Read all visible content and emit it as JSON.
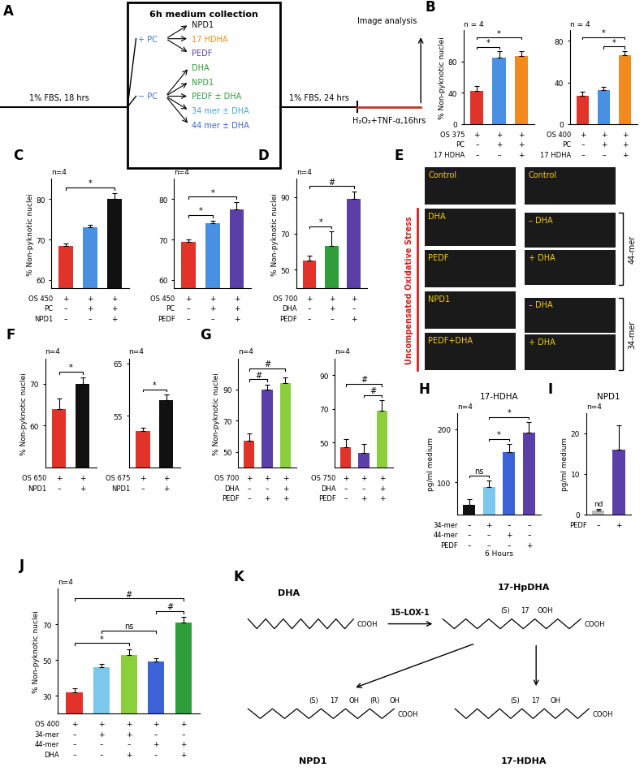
{
  "diagram_A": {
    "panel": "A",
    "title": "6h medium collection",
    "start": "1% FBS, 18 hrs",
    "groups": [
      {
        "label": "+ PC",
        "items": [
          {
            "text": "NPD1",
            "color": "#111111"
          },
          {
            "text": "17 HDHA",
            "color": "#f28a1e"
          },
          {
            "text": "PEDF",
            "color": "#5b3fa8"
          }
        ]
      },
      {
        "label": "− PC",
        "items": [
          {
            "text": "DHA",
            "color": "#2e9e3a"
          },
          {
            "text": "NPD1",
            "color": "#2e9e3a"
          },
          {
            "text": "PEDF ± DHA",
            "color": "#2e9e3a"
          },
          {
            "text": "34 mer ± DHA",
            "color": "#3aa6e0"
          },
          {
            "text": "44 mer ± DHA",
            "color": "#3b63d6"
          }
        ]
      }
    ],
    "after": "1% FBS, 24 hrs",
    "stress": "H₂O₂+TNF-α,16hrs",
    "end": "Image analysis"
  },
  "chart_data": [
    {
      "type": "bar",
      "panel": "B",
      "n": "n = 4",
      "ylabel": "% Non-pyknotic nuclei",
      "x_table": [
        {
          "label": "OS 375",
          "marks": [
            "+",
            "+",
            "+"
          ]
        },
        {
          "label": "PC",
          "marks": [
            "–",
            "+",
            "+"
          ]
        },
        {
          "label": "17 HDHA",
          "marks": [
            "–",
            "–",
            "+"
          ]
        }
      ],
      "values": [
        43,
        85,
        87
      ],
      "errors": [
        6,
        8,
        6
      ],
      "colors": [
        "#e2332b",
        "#4a90e2",
        "#f28a1e"
      ],
      "ylim": [
        0,
        120
      ],
      "yticks": [
        0,
        40,
        80
      ],
      "comparisons": [
        {
          "pair": [
            0,
            1
          ],
          "label": "*"
        },
        {
          "pair": [
            0,
            2
          ],
          "label": "*"
        }
      ]
    },
    {
      "type": "bar",
      "n": "n = 4",
      "x_table": [
        {
          "label": "OS 400",
          "marks": [
            "+",
            "+",
            "+"
          ]
        },
        {
          "label": "PC",
          "marks": [
            "–",
            "+",
            "+"
          ]
        },
        {
          "label": "17 HDHA",
          "marks": [
            "–",
            "–",
            "+"
          ]
        }
      ],
      "values": [
        27,
        33,
        66
      ],
      "errors": [
        4,
        3,
        4
      ],
      "colors": [
        "#e2332b",
        "#4a90e2",
        "#f28a1e"
      ],
      "ylim": [
        0,
        90
      ],
      "yticks": [
        0,
        40,
        80
      ],
      "comparisons": [
        {
          "pair": [
            1,
            2
          ],
          "label": "*"
        },
        {
          "pair": [
            0,
            2
          ],
          "label": "*"
        }
      ]
    },
    {
      "type": "bar",
      "panel": "C",
      "n": "n=4",
      "ylabel": "% Non-pyknotic nuclei",
      "x_table": [
        {
          "label": "OS 450",
          "marks": [
            "+",
            "+",
            "+"
          ]
        },
        {
          "label": "PC",
          "marks": [
            "–",
            "+",
            "+"
          ]
        },
        {
          "label": "NPD1",
          "marks": [
            "–",
            "–",
            "+"
          ]
        }
      ],
      "values": [
        68.5,
        73,
        80
      ],
      "errors": [
        0.5,
        0.7,
        1.5
      ],
      "colors": [
        "#e2332b",
        "#4a90e2",
        "#111111"
      ],
      "ylim": [
        58,
        85
      ],
      "yticks": [
        60,
        70,
        80
      ],
      "comparisons": [
        {
          "pair": [
            0,
            2
          ],
          "label": "*"
        }
      ]
    },
    {
      "type": "bar",
      "n": "n=4",
      "x_table": [
        {
          "label": "OS 450",
          "marks": [
            "+",
            "+",
            "+"
          ]
        },
        {
          "label": "PC",
          "marks": [
            "–",
            "+",
            "+"
          ]
        },
        {
          "label": "PEDF",
          "marks": [
            "–",
            "–",
            "+"
          ]
        }
      ],
      "values": [
        69.5,
        74,
        77.5
      ],
      "errors": [
        0.5,
        0.7,
        1.7
      ],
      "colors": [
        "#e2332b",
        "#4a90e2",
        "#5b3fa8"
      ],
      "ylim": [
        58,
        85
      ],
      "yticks": [
        60,
        70,
        80
      ],
      "comparisons": [
        {
          "pair": [
            0,
            1
          ],
          "label": "*"
        },
        {
          "pair": [
            0,
            2
          ],
          "label": "*"
        }
      ]
    },
    {
      "type": "bar",
      "panel": "D",
      "n": "n=4",
      "ylabel": "% Non-pyknotic nuclei",
      "x_table": [
        {
          "label": "OS 700",
          "marks": [
            "+",
            "+",
            "+"
          ]
        },
        {
          "label": "DHA",
          "marks": [
            "–",
            "+",
            "–"
          ]
        },
        {
          "label": "PEDF",
          "marks": [
            "–",
            "–",
            "+"
          ]
        }
      ],
      "values": [
        55,
        63,
        89
      ],
      "errors": [
        3,
        8,
        4
      ],
      "colors": [
        "#e2332b",
        "#2e9e3a",
        "#5b3fa8"
      ],
      "ylim": [
        40,
        100
      ],
      "yticks": [
        50,
        70,
        90
      ],
      "comparisons": [
        {
          "pair": [
            0,
            1
          ],
          "label": "*"
        },
        {
          "pair": [
            0,
            2
          ],
          "label": "#"
        }
      ]
    },
    {
      "type": "bar",
      "panel": "F",
      "n": "n=4",
      "ylabel": "% Non-pyknotic nuclei",
      "x_table": [
        {
          "label": "OS 650",
          "marks": [
            "+",
            "+"
          ]
        },
        {
          "label": "NPD1",
          "marks": [
            "–",
            "+"
          ]
        }
      ],
      "values": [
        64,
        70
      ],
      "errors": [
        2.5,
        1.5
      ],
      "colors": [
        "#e2332b",
        "#111111"
      ],
      "ylim": [
        50,
        76
      ],
      "yticks": [
        60,
        70
      ],
      "comparisons": [
        {
          "pair": [
            0,
            1
          ],
          "label": "*"
        }
      ]
    },
    {
      "type": "bar",
      "n": "n=4",
      "x_table": [
        {
          "label": "OS 675",
          "marks": [
            "+",
            "+"
          ]
        },
        {
          "label": "NPD1",
          "marks": [
            "–",
            "+"
          ]
        }
      ],
      "values": [
        52,
        58
      ],
      "errors": [
        0.7,
        1
      ],
      "colors": [
        "#e2332b",
        "#111111"
      ],
      "ylim": [
        45,
        66
      ],
      "yticks": [
        55,
        65
      ],
      "comparisons": [
        {
          "pair": [
            0,
            1
          ],
          "label": "*"
        }
      ]
    },
    {
      "type": "bar",
      "panel": "G",
      "n": "n=4",
      "ylabel": "% Non-pyknotic nuclei",
      "x_table": [
        {
          "label": "OS 700",
          "marks": [
            "+",
            "+",
            "+"
          ]
        },
        {
          "label": "DHA",
          "marks": [
            "–",
            "–",
            "+"
          ]
        },
        {
          "label": "PEDF",
          "marks": [
            "–",
            "+",
            "+"
          ]
        }
      ],
      "values": [
        57,
        90,
        94
      ],
      "errors": [
        5,
        3,
        4
      ],
      "colors": [
        "#e2332b",
        "#5b3fa8",
        "#8ccf3c"
      ],
      "ylim": [
        40,
        110
      ],
      "yticks": [
        50,
        70,
        90
      ],
      "comparisons": [
        {
          "pair": [
            0,
            1
          ],
          "label": "#"
        },
        {
          "pair": [
            0,
            2
          ],
          "label": "#"
        }
      ]
    },
    {
      "type": "bar",
      "n": "n=4",
      "x_table": [
        {
          "label": "OS 750",
          "marks": [
            "+",
            "+",
            "+"
          ]
        },
        {
          "label": "DHA",
          "marks": [
            "–",
            "–",
            "+"
          ]
        },
        {
          "label": "PEDF",
          "marks": [
            "–",
            "+",
            "+"
          ]
        }
      ],
      "values": [
        47,
        44,
        69
      ],
      "errors": [
        5,
        5,
        6
      ],
      "colors": [
        "#e2332b",
        "#5b3fa8",
        "#8ccf3c"
      ],
      "ylim": [
        35,
        100
      ],
      "yticks": [
        50,
        70,
        90
      ],
      "comparisons": [
        {
          "pair": [
            1,
            2
          ],
          "label": "#"
        },
        {
          "pair": [
            0,
            2
          ],
          "label": "#"
        }
      ]
    },
    {
      "type": "bar",
      "panel": "H",
      "title": "17-HDHA",
      "n": "n=4",
      "ylabel": "pg/ml medium",
      "xlabel": "6 Hours",
      "x_table": [
        {
          "label": "34-mer",
          "marks": [
            "–",
            "+",
            "–",
            "–"
          ]
        },
        {
          "label": "44-mer",
          "marks": [
            "–",
            "–",
            "+",
            "–"
          ]
        },
        {
          "label": "PEDF",
          "marks": [
            "–",
            "–",
            "–",
            "+"
          ]
        }
      ],
      "values": [
        58,
        92,
        157,
        193
      ],
      "errors": [
        10,
        12,
        15,
        20
      ],
      "colors": [
        "#111111",
        "#7cc7ee",
        "#3b63d6",
        "#5b3fa8"
      ],
      "ylim": [
        40,
        230
      ],
      "yticks": [
        100,
        200
      ],
      "comparisons": [
        {
          "pair": [
            0,
            1
          ],
          "label": "ns"
        },
        {
          "pair": [
            1,
            2
          ],
          "label": "*"
        },
        {
          "pair": [
            1,
            3
          ],
          "label": "*"
        }
      ]
    },
    {
      "type": "bar",
      "panel": "I",
      "title": "NPD1",
      "n": "n=4",
      "ylabel": "pg/ml medium",
      "x_table": [
        {
          "label": "PEDF",
          "marks": [
            "–",
            "+"
          ]
        }
      ],
      "values": [
        1,
        16
      ],
      "errors": [
        0.3,
        6
      ],
      "colors": [
        "#bbbbbb",
        "#5b3fa8"
      ],
      "ylim": [
        0,
        25
      ],
      "yticks": [
        0,
        10,
        20
      ],
      "annotations": [
        {
          "index": 0,
          "text": "nd"
        }
      ]
    },
    {
      "type": "bar",
      "panel": "J",
      "n": "n=4",
      "ylabel": "% Non-pyknotic nuclei",
      "x_table": [
        {
          "label": "OS 400",
          "marks": [
            "+",
            "+",
            "+",
            "+",
            "+"
          ]
        },
        {
          "label": "34-mer",
          "marks": [
            "–",
            "+",
            "+",
            "–",
            "–"
          ]
        },
        {
          "label": "44-mer",
          "marks": [
            "–",
            "–",
            "–",
            "+",
            "+"
          ]
        },
        {
          "label": "DHA",
          "marks": [
            "–",
            "–",
            "+",
            "–",
            "+"
          ]
        }
      ],
      "values": [
        32,
        46,
        53,
        49,
        71
      ],
      "errors": [
        2,
        2,
        3,
        2,
        3
      ],
      "colors": [
        "#e2332b",
        "#7cc7ee",
        "#8ccf3c",
        "#3b63d6",
        "#2e9e3a"
      ],
      "ylim": [
        20,
        90
      ],
      "yticks": [
        30,
        50,
        70
      ],
      "comparisons": [
        {
          "pair": [
            0,
            2
          ],
          "label": "*"
        },
        {
          "pair": [
            1,
            3
          ],
          "label": "ns"
        },
        {
          "pair": [
            3,
            4
          ],
          "label": "#"
        },
        {
          "pair": [
            0,
            4
          ],
          "label": "#"
        }
      ]
    }
  ],
  "images_E": {
    "panel": "E",
    "side_label": "Uncompensated Oxidative Stress",
    "left_column": [
      "Control",
      "DHA",
      "PEDF",
      "NPD1",
      "PEDF+DHA"
    ],
    "right_column": [
      "Control",
      "– DHA",
      "+ DHA",
      "– DHA",
      "+ DHA"
    ],
    "groups": [
      "44-mer",
      "34-mer"
    ]
  },
  "scheme_K": {
    "panel": "K",
    "enzyme": "15-LOX-1",
    "molecules": [
      {
        "name": "DHA",
        "end_group": "COOH",
        "groups": []
      },
      {
        "name": "17-HpDHA",
        "end_group": "COOH",
        "groups": [
          "(S)",
          "17",
          "OOH"
        ]
      },
      {
        "name": "NPD1",
        "end_group": "COOH",
        "groups": [
          "(S)",
          "17",
          "OH",
          "(R)",
          "OH"
        ]
      },
      {
        "name": "17-HDHA",
        "end_group": "COOH",
        "groups": [
          "(S)",
          "17",
          "OH"
        ]
      }
    ]
  }
}
